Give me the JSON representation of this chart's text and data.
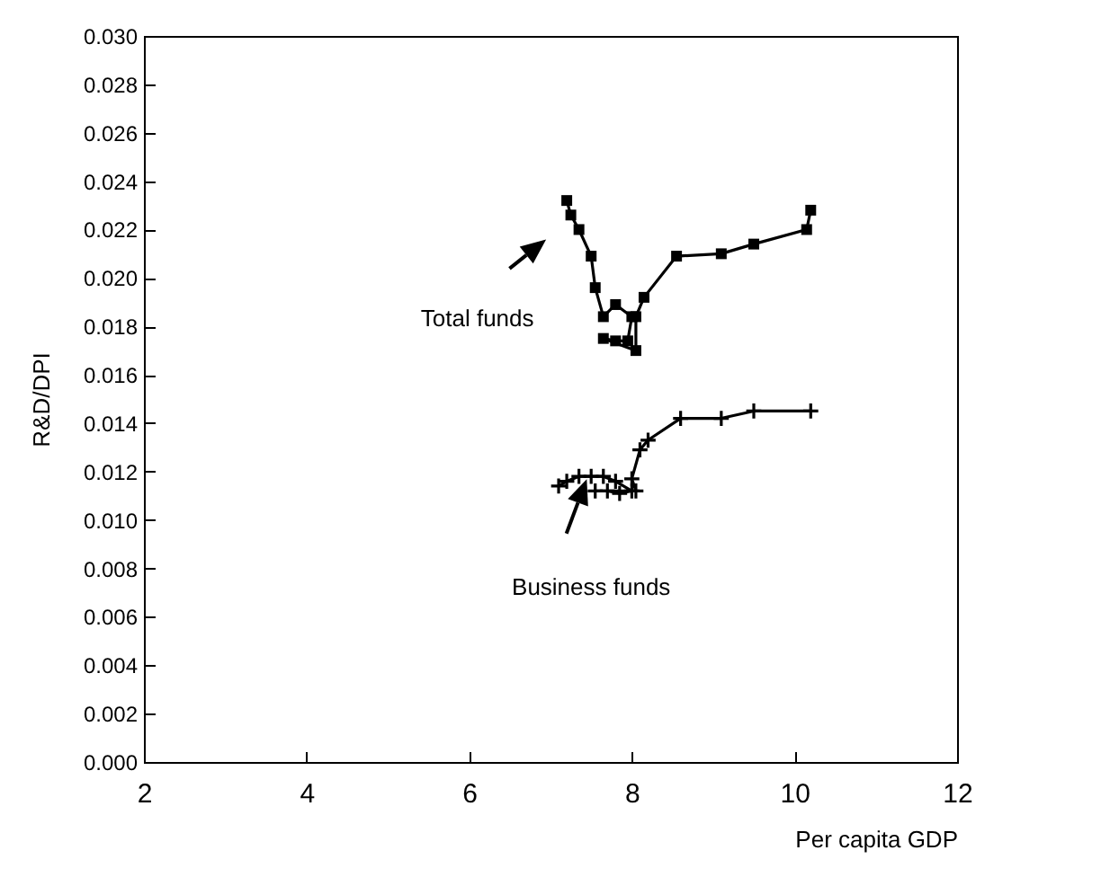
{
  "chart_data": {
    "type": "line",
    "xlabel": "Per capita GDP",
    "ylabel": "R&D/DPI",
    "xlim": [
      2,
      12
    ],
    "xticks": [
      2,
      4,
      6,
      8,
      10,
      12
    ],
    "ylim": [
      0,
      0.03
    ],
    "yticks": [
      {
        "value": 0,
        "label": "0.000"
      },
      {
        "value": 0.002,
        "label": "0.002"
      },
      {
        "value": 0.004,
        "label": "0.004"
      },
      {
        "value": 0.006,
        "label": "0.006"
      },
      {
        "value": 0.008,
        "label": "0.008"
      },
      {
        "value": 0.01,
        "label": "0.010"
      },
      {
        "value": 0.012,
        "label": "0.012"
      },
      {
        "value": 0.014,
        "label": "0.014"
      },
      {
        "value": 0.016,
        "label": "0.016"
      },
      {
        "value": 0.018,
        "label": "0.018"
      },
      {
        "value": 0.02,
        "label": "0.020"
      },
      {
        "value": 0.022,
        "label": "0.022"
      },
      {
        "value": 0.024,
        "label": "0.024"
      },
      {
        "value": 0.026,
        "label": "0.026"
      },
      {
        "value": 0.028,
        "label": "0.028"
      },
      {
        "value": 0.03,
        "label": "0.030"
      }
    ],
    "grid": false,
    "line_style": "solid",
    "series": [
      {
        "color": "#000000",
        "marker": "square",
        "x": [
          7.2,
          7.25,
          7.35,
          7.5,
          7.55,
          7.65,
          7.8,
          8.0,
          7.95,
          7.8,
          7.65,
          8.05,
          8.05,
          8.15,
          8.55,
          9.1,
          9.5,
          10.15,
          10.2
        ],
        "values": [
          0.0232,
          0.0226,
          0.022,
          0.0209,
          0.0196,
          0.0184,
          0.0189,
          0.0184,
          0.0174,
          0.0174,
          0.0175,
          0.017,
          0.0184,
          0.0192,
          0.0209,
          0.021,
          0.0214,
          0.022,
          0.0228
        ]
      },
      {
        "color": "#000000",
        "marker": "cross",
        "x": [
          7.1,
          7.2,
          7.35,
          7.5,
          7.65,
          7.8,
          8.0,
          7.85,
          7.7,
          7.55,
          8.05,
          8.0,
          8.1,
          8.2,
          8.6,
          9.1,
          9.5,
          10.2
        ],
        "values": [
          0.0114,
          0.0116,
          0.0118,
          0.0118,
          0.0118,
          0.0116,
          0.0112,
          0.0111,
          0.0112,
          0.0112,
          0.0112,
          0.0117,
          0.0129,
          0.0133,
          0.0142,
          0.0142,
          0.0145,
          0.0145
        ]
      }
    ],
    "annotations": [
      "Total funds",
      "Business funds"
    ]
  }
}
